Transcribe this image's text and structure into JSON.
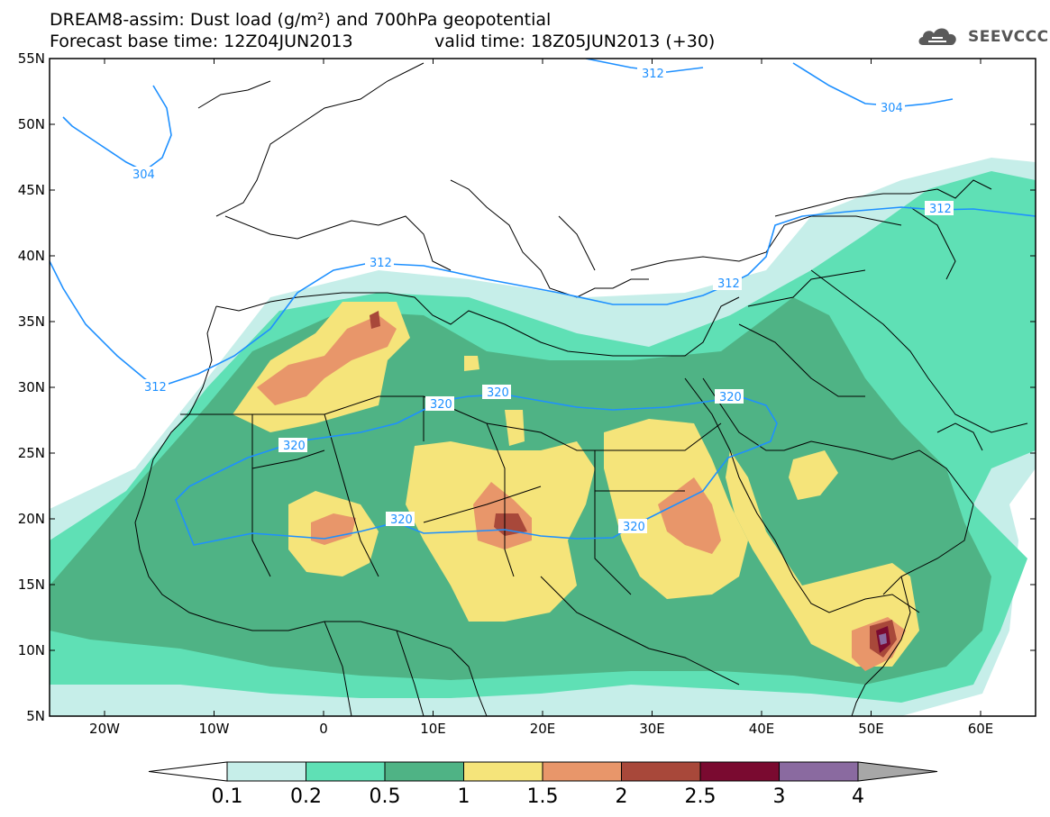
{
  "header": {
    "title_line1": "DREAM8-assim: Dust load (g/m²) and 700hPa geopotential",
    "title_line2": "Forecast base time: 12Z04JUN2013",
    "valid_time": "valid time: 18Z05JUN2013 (+30)"
  },
  "logo": {
    "text": "SEEVCCC",
    "icon": "cloud-icon"
  },
  "map": {
    "lat_labels": [
      "55N",
      "50N",
      "45N",
      "40N",
      "35N",
      "30N",
      "25N",
      "20N",
      "15N",
      "10N",
      "5N"
    ],
    "lon_labels": [
      "20W",
      "10W",
      "0",
      "10E",
      "20E",
      "30E",
      "40E",
      "50E",
      "60E"
    ],
    "contour_labels": [
      "312",
      "304",
      "304",
      "312",
      "312",
      "312",
      "312",
      "320",
      "320",
      "320",
      "320",
      "320",
      "320"
    ],
    "colors": {
      "land_bg": "#ffffff",
      "contour": "#1e90ff",
      "border": "#000000"
    }
  },
  "colorbar": {
    "tick_labels": [
      "0.1",
      "0.2",
      "0.5",
      "1",
      "1.5",
      "2",
      "2.5",
      "3",
      "4"
    ],
    "colors": [
      "#c6eee9",
      "#5fe0b5",
      "#4fb385",
      "#f5e47a",
      "#e8966a",
      "#a8483a",
      "#7a0a30",
      "#8a6aa0",
      "#a7a7a7"
    ],
    "under_color": "#ffffff"
  }
}
